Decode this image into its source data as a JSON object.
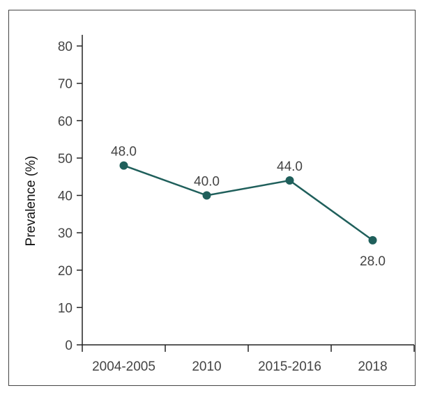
{
  "chart_data": {
    "type": "line",
    "title": "",
    "xlabel": "",
    "ylabel": "Prevalence (%)",
    "ylim": [
      0,
      80
    ],
    "yticks": [
      0,
      10,
      20,
      30,
      40,
      50,
      60,
      70,
      80
    ],
    "categories": [
      "2004-2005",
      "2010",
      "2015-2016",
      "2018"
    ],
    "series": [
      {
        "values": [
          48.0,
          40.0,
          44.0,
          28.0
        ],
        "labels": [
          "48.0",
          "40.0",
          "44.0",
          "28.0"
        ],
        "label_positions": [
          "above",
          "above",
          "above",
          "below"
        ],
        "color": "#1f5f5b"
      }
    ],
    "grid": false,
    "legend": "none"
  }
}
